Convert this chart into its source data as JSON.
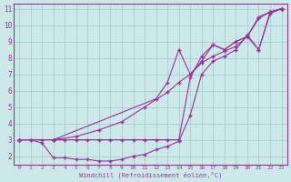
{
  "bg_color": "#cce8e8",
  "grid_color": "#aacccc",
  "line_color": "#993399",
  "marker": "+",
  "marker_size": 3.5,
  "xlabel": "Windchill (Refroidissement éolien,°C)",
  "xlim": [
    -0.5,
    23.5
  ],
  "ylim": [
    1.5,
    11.3
  ],
  "yticks": [
    2,
    3,
    4,
    5,
    6,
    7,
    8,
    9,
    10,
    11
  ],
  "xticks": [
    0,
    1,
    2,
    3,
    4,
    5,
    6,
    7,
    8,
    9,
    10,
    11,
    12,
    13,
    14,
    15,
    16,
    17,
    18,
    19,
    20,
    21,
    22,
    23
  ],
  "series": [
    {
      "x": [
        0,
        1,
        2,
        3,
        4,
        5,
        6,
        7,
        8,
        9,
        10,
        11,
        12,
        13,
        14,
        15,
        16,
        17,
        18,
        19,
        20,
        21,
        22,
        23
      ],
      "y": [
        3.0,
        3.0,
        2.8,
        1.9,
        1.9,
        1.8,
        1.8,
        1.7,
        1.7,
        1.8,
        2.0,
        2.1,
        2.4,
        2.6,
        2.9,
        4.5,
        7.0,
        7.8,
        8.1,
        8.5,
        9.4,
        8.5,
        10.7,
        11.0
      ]
    },
    {
      "x": [
        0,
        3,
        5,
        7,
        9,
        11,
        13,
        14,
        15,
        16,
        17,
        18,
        19,
        20,
        21,
        22,
        23
      ],
      "y": [
        3.0,
        3.0,
        3.2,
        3.6,
        4.1,
        5.0,
        5.9,
        6.5,
        7.0,
        7.7,
        8.1,
        8.4,
        8.7,
        9.3,
        10.4,
        10.8,
        11.0
      ]
    },
    {
      "x": [
        0,
        3,
        12,
        13,
        14,
        15,
        16,
        17,
        18,
        19,
        20,
        21,
        22,
        23
      ],
      "y": [
        3.0,
        3.0,
        5.5,
        6.5,
        8.5,
        7.0,
        7.8,
        8.8,
        8.5,
        9.0,
        9.3,
        10.5,
        10.8,
        11.0
      ]
    },
    {
      "x": [
        0,
        1,
        2,
        3,
        4,
        5,
        6,
        7,
        8,
        9,
        10,
        11,
        12,
        13,
        14,
        15,
        16,
        17,
        18,
        19,
        20,
        21,
        22,
        23
      ],
      "y": [
        3.0,
        3.0,
        3.0,
        3.0,
        3.0,
        3.0,
        3.0,
        3.0,
        3.0,
        3.0,
        3.0,
        3.0,
        3.0,
        3.0,
        3.0,
        6.8,
        8.1,
        8.8,
        8.5,
        9.0,
        9.3,
        8.5,
        10.8,
        11.0
      ]
    }
  ]
}
